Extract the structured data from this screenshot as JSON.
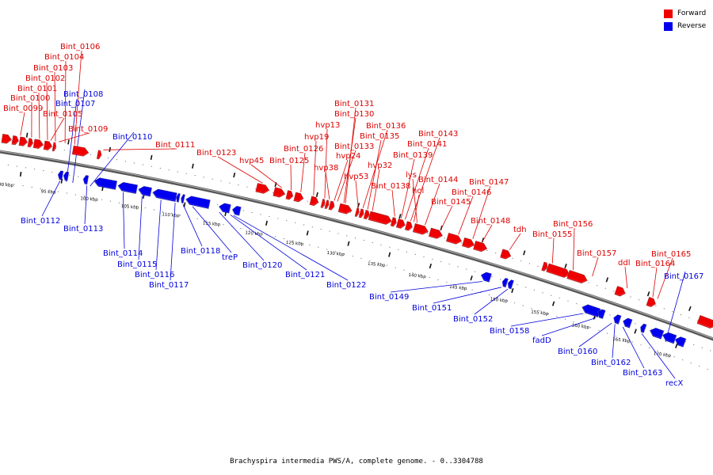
{
  "legend": {
    "forward_label": "Forward",
    "reverse_label": "Reverse",
    "forward_color": "#ee0000",
    "reverse_color": "#0000ee"
  },
  "caption": "Brachyspira intermedia PWS/A, complete genome. - 0..3304788",
  "kbp_labels": [
    "90 kbp",
    "95 kbp",
    "100 kbp",
    "105 kbp",
    "110 kbp",
    "115 kbp",
    "120 kbp",
    "125 kbp",
    "130 kbp",
    "135 kbp",
    "140 kbp",
    "145 kbp",
    "150 kbp",
    "155 kbp",
    "160 kbp",
    "165 kbp",
    "170 kbp"
  ],
  "forward_genes": [
    "Bint_0106",
    "Bint_0104",
    "Bint_0103",
    "Bint_0102",
    "Bint_0101",
    "Bint_0100",
    "Bint_0099",
    "Bint_0105",
    "Bint_0109",
    "Bint_0111",
    "Bint_0123",
    "hvp45",
    "Bint_0125",
    "Bint_0126",
    "hvp19",
    "hvp13",
    "Bint_0131",
    "Bint_0130",
    "hvp38",
    "hvp24",
    "Bint_0133",
    "hvp53",
    "Bint_0136",
    "Bint_0135",
    "hvp32",
    "Bint_0138",
    "Bint_0139",
    "Bint_0141",
    "Bint_0143",
    "lys",
    "hol",
    "Bint_0144",
    "Bint_0145",
    "Bint_0146",
    "Bint_0147",
    "Bint_0148",
    "tdh",
    "Bint_0155",
    "Bint_0156",
    "Bint_0157",
    "ddl",
    "Bint_0164",
    "Bint_0165"
  ],
  "reverse_genes": [
    "Bint_0108",
    "Bint_0107",
    "Bint_0110",
    "Bint_0112",
    "Bint_0113",
    "Bint_0114",
    "Bint_0115",
    "Bint_0116",
    "Bint_0117",
    "Bint_0118",
    "treP",
    "Bint_0120",
    "Bint_0121",
    "Bint_0122",
    "Bint_0149",
    "Bint_0151",
    "Bint_0152",
    "Bint_0158",
    "fadD",
    "Bint_0160",
    "Bint_0162",
    "Bint_0163",
    "recX",
    "Bint_0167"
  ]
}
